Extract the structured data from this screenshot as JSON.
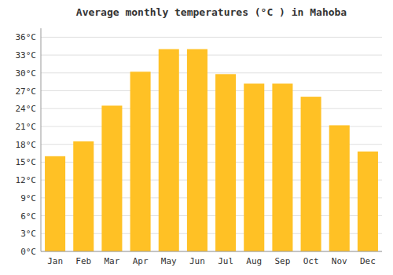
{
  "chart_data": {
    "type": "bar",
    "title": "Average monthly temperatures (°C ) in Mahoba",
    "categories": [
      "Jan",
      "Feb",
      "Mar",
      "Apr",
      "May",
      "Jun",
      "Jul",
      "Aug",
      "Sep",
      "Oct",
      "Nov",
      "Dec"
    ],
    "values": [
      16.0,
      18.5,
      24.5,
      30.2,
      34.0,
      34.0,
      29.8,
      28.2,
      28.2,
      26.0,
      21.2,
      16.8
    ],
    "color": "#FFC125",
    "ylim": [
      0,
      37.5
    ],
    "yticks": [
      {
        "value": 0,
        "label": "0°C"
      },
      {
        "value": 3,
        "label": "3°C"
      },
      {
        "value": 6,
        "label": "6°C"
      },
      {
        "value": 9,
        "label": "9°C"
      },
      {
        "value": 12,
        "label": "12°C"
      },
      {
        "value": 15,
        "label": "15°C"
      },
      {
        "value": 18,
        "label": "18°C"
      },
      {
        "value": 21,
        "label": "21°C"
      },
      {
        "value": 24,
        "label": "24°C"
      },
      {
        "value": 27,
        "label": "27°C"
      },
      {
        "value": 30,
        "label": "30°C"
      },
      {
        "value": 33,
        "label": "33°C"
      },
      {
        "value": 36,
        "label": "36°C"
      }
    ],
    "grid": true
  }
}
